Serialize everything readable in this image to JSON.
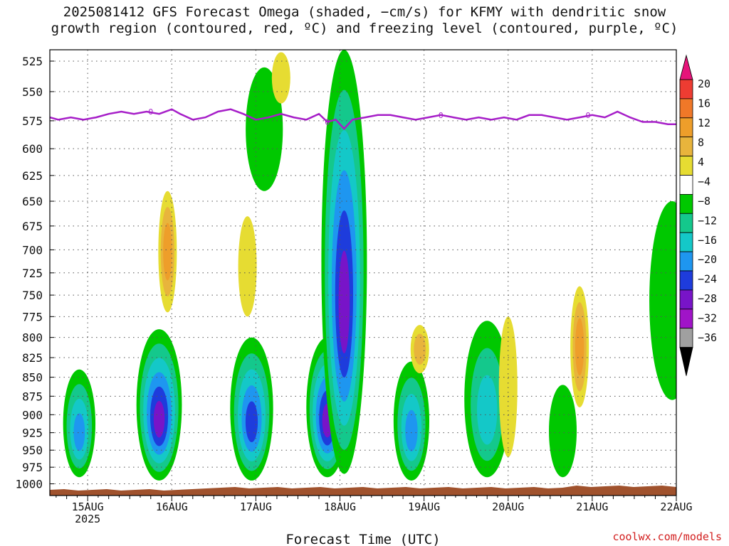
{
  "title": {
    "line1": "2025081412 GFS Forecast Omega (shaded, −cm/s) for KFMY with dendritic snow",
    "line2": "growth region (contoured, red, ºC) and freezing level (contoured, purple, ºC)"
  },
  "credit": "coolwx.com/models",
  "colors": {
    "freezing_level": "#a61ec8",
    "ground": "#a0522d",
    "grid": "#555555"
  },
  "chart_data": {
    "type": "heatmap",
    "title": "2025081412 GFS Forecast Omega (shaded, −cm/s) for KFMY with dendritic snow growth region (contoured, red, ºC) and freezing level (contoured, purple, ºC)",
    "xlabel": "Forecast Time (UTC)",
    "ylabel": "",
    "x_ticks": [
      {
        "label": "15AUG",
        "sub": "2025"
      },
      {
        "label": "16AUG",
        "sub": ""
      },
      {
        "label": "17AUG",
        "sub": ""
      },
      {
        "label": "18AUG",
        "sub": ""
      },
      {
        "label": "19AUG",
        "sub": ""
      },
      {
        "label": "20AUG",
        "sub": ""
      },
      {
        "label": "21AUG",
        "sub": ""
      },
      {
        "label": "22AUG",
        "sub": ""
      }
    ],
    "x_range_days": [
      14.55,
      22.0
    ],
    "y_ticks": [
      "525",
      "550",
      "575",
      "600",
      "625",
      "650",
      "675",
      "700",
      "725",
      "750",
      "775",
      "800",
      "825",
      "850",
      "875",
      "900",
      "925",
      "950",
      "975",
      "1000"
    ],
    "y_range_hpa": [
      516,
      1018
    ],
    "y_scale": "log-pressure",
    "colorbar": {
      "labels": [
        "20",
        "16",
        "12",
        "8",
        "4",
        "−4",
        "−8",
        "−12",
        "−16",
        "−20",
        "−24",
        "−28",
        "−32",
        "−36"
      ],
      "colors": [
        "#e6147a",
        "#ee3c32",
        "#f07828",
        "#ee9e2a",
        "#e8b43c",
        "#e6dc32",
        "#ffffff",
        "#00c800",
        "#14c88c",
        "#14c8c8",
        "#1e96f0",
        "#1e3cdc",
        "#7814c8",
        "#a014c8",
        "#a0a0a0",
        "#000000"
      ]
    },
    "freezing_level": {
      "label": "0",
      "x_days": [
        14.55,
        14.65,
        14.8,
        14.95,
        15.1,
        15.25,
        15.4,
        15.55,
        15.7,
        15.85,
        16.0,
        16.1,
        16.25,
        16.4,
        16.55,
        16.7,
        16.85,
        17.0,
        17.15,
        17.3,
        17.45,
        17.6,
        17.75,
        17.85,
        17.95,
        18.05,
        18.15,
        18.3,
        18.45,
        18.6,
        18.75,
        18.9,
        19.05,
        19.2,
        19.35,
        19.5,
        19.65,
        19.8,
        19.95,
        20.1,
        20.25,
        20.4,
        20.55,
        20.7,
        20.85,
        21.0,
        21.15,
        21.3,
        21.45,
        21.6,
        21.75,
        21.9,
        22.0
      ],
      "pressure_hpa": [
        572,
        574,
        572,
        574,
        572,
        569,
        567,
        569,
        567,
        569,
        565,
        569,
        574,
        572,
        567,
        565,
        569,
        574,
        572,
        569,
        572,
        574,
        569,
        576,
        574,
        582,
        574,
        572,
        570,
        570,
        572,
        574,
        572,
        570,
        572,
        574,
        572,
        574,
        572,
        574,
        570,
        570,
        572,
        574,
        572,
        570,
        572,
        567,
        572,
        576,
        576,
        578,
        578
      ]
    },
    "omega_cells": [
      {
        "day": 14.9,
        "hpa_top": 840,
        "hpa_bottom": 990,
        "min_value": -20
      },
      {
        "day": 15.85,
        "hpa_top": 790,
        "hpa_bottom": 995,
        "min_value": -28
      },
      {
        "day": 16.95,
        "hpa_top": 800,
        "hpa_bottom": 995,
        "min_value": -24
      },
      {
        "day": 17.85,
        "hpa_top": 800,
        "hpa_bottom": 990,
        "min_value": -28
      },
      {
        "day": 18.05,
        "hpa_top": 516,
        "hpa_bottom": 985,
        "min_value": -28
      },
      {
        "day": 18.85,
        "hpa_top": 830,
        "hpa_bottom": 995,
        "min_value": -20
      },
      {
        "day": 19.75,
        "hpa_top": 780,
        "hpa_bottom": 990,
        "min_value": -16
      },
      {
        "day": 20.65,
        "hpa_top": 860,
        "hpa_bottom": 990,
        "min_value": -8
      },
      {
        "day": 21.95,
        "hpa_top": 650,
        "hpa_bottom": 880,
        "min_value": -8
      },
      {
        "day": 17.1,
        "hpa_top": 530,
        "hpa_bottom": 640,
        "min_value": -8
      }
    ],
    "positive_cells": [
      {
        "day": 15.95,
        "hpa_top": 640,
        "hpa_bottom": 770,
        "max_value": 12
      },
      {
        "day": 16.9,
        "hpa_top": 665,
        "hpa_bottom": 775,
        "max_value": 4
      },
      {
        "day": 18.95,
        "hpa_top": 785,
        "hpa_bottom": 845,
        "max_value": 8
      },
      {
        "day": 20.0,
        "hpa_top": 775,
        "hpa_bottom": 960,
        "max_value": 4
      },
      {
        "day": 20.85,
        "hpa_top": 740,
        "hpa_bottom": 890,
        "max_value": 12
      },
      {
        "day": 17.3,
        "hpa_top": 518,
        "hpa_bottom": 560,
        "max_value": 4
      }
    ]
  }
}
